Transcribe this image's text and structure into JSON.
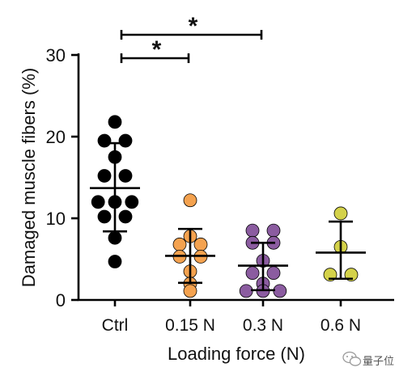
{
  "chart_data": {
    "type": "scatter",
    "categories": [
      "Ctrl",
      "0.15 N",
      "0.3 N",
      "0.6 N"
    ],
    "xlabel": "Loading force (N)",
    "ylabel": "Damaged muscle fibers (%)",
    "ylim": [
      0,
      30
    ],
    "yticks": [
      0,
      10,
      20,
      30
    ],
    "grid": false,
    "series": [
      {
        "category": "Ctrl",
        "color": "#000000",
        "values": [
          21.8,
          19.5,
          19.5,
          17.5,
          15.2,
          15.2,
          12.0,
          12.0,
          12.0,
          10.2,
          10.2,
          7.6,
          4.7
        ],
        "mean": 13.7,
        "sd_upper": 19.2,
        "sd_lower": 8.4
      },
      {
        "category": "0.15 N",
        "color": "#F4A24F",
        "values": [
          12.2,
          7.8,
          6.8,
          6.8,
          5.3,
          5.3,
          3.5,
          2.0,
          1.1
        ],
        "mean": 5.4,
        "sd_upper": 8.7,
        "sd_lower": 2.1
      },
      {
        "category": "0.3 N",
        "color": "#8B5CA0",
        "values": [
          8.5,
          8.5,
          7.0,
          7.0,
          4.8,
          3.3,
          3.3,
          2.0,
          1.1,
          1.1,
          1.1
        ],
        "mean": 4.2,
        "sd_upper": 7.0,
        "sd_lower": 1.2
      },
      {
        "category": "0.6 N",
        "color": "#D4D24A",
        "values": [
          10.6,
          6.5,
          3.1,
          3.1
        ],
        "mean": 5.8,
        "sd_upper": 9.6,
        "sd_lower": 2.6
      }
    ],
    "significance": [
      {
        "from": "Ctrl",
        "to": "0.3 N",
        "label": "*"
      },
      {
        "from": "Ctrl",
        "to": "0.15 N",
        "label": "*"
      }
    ]
  },
  "watermark": {
    "text": "量子位",
    "icon": "wechat-icon"
  }
}
